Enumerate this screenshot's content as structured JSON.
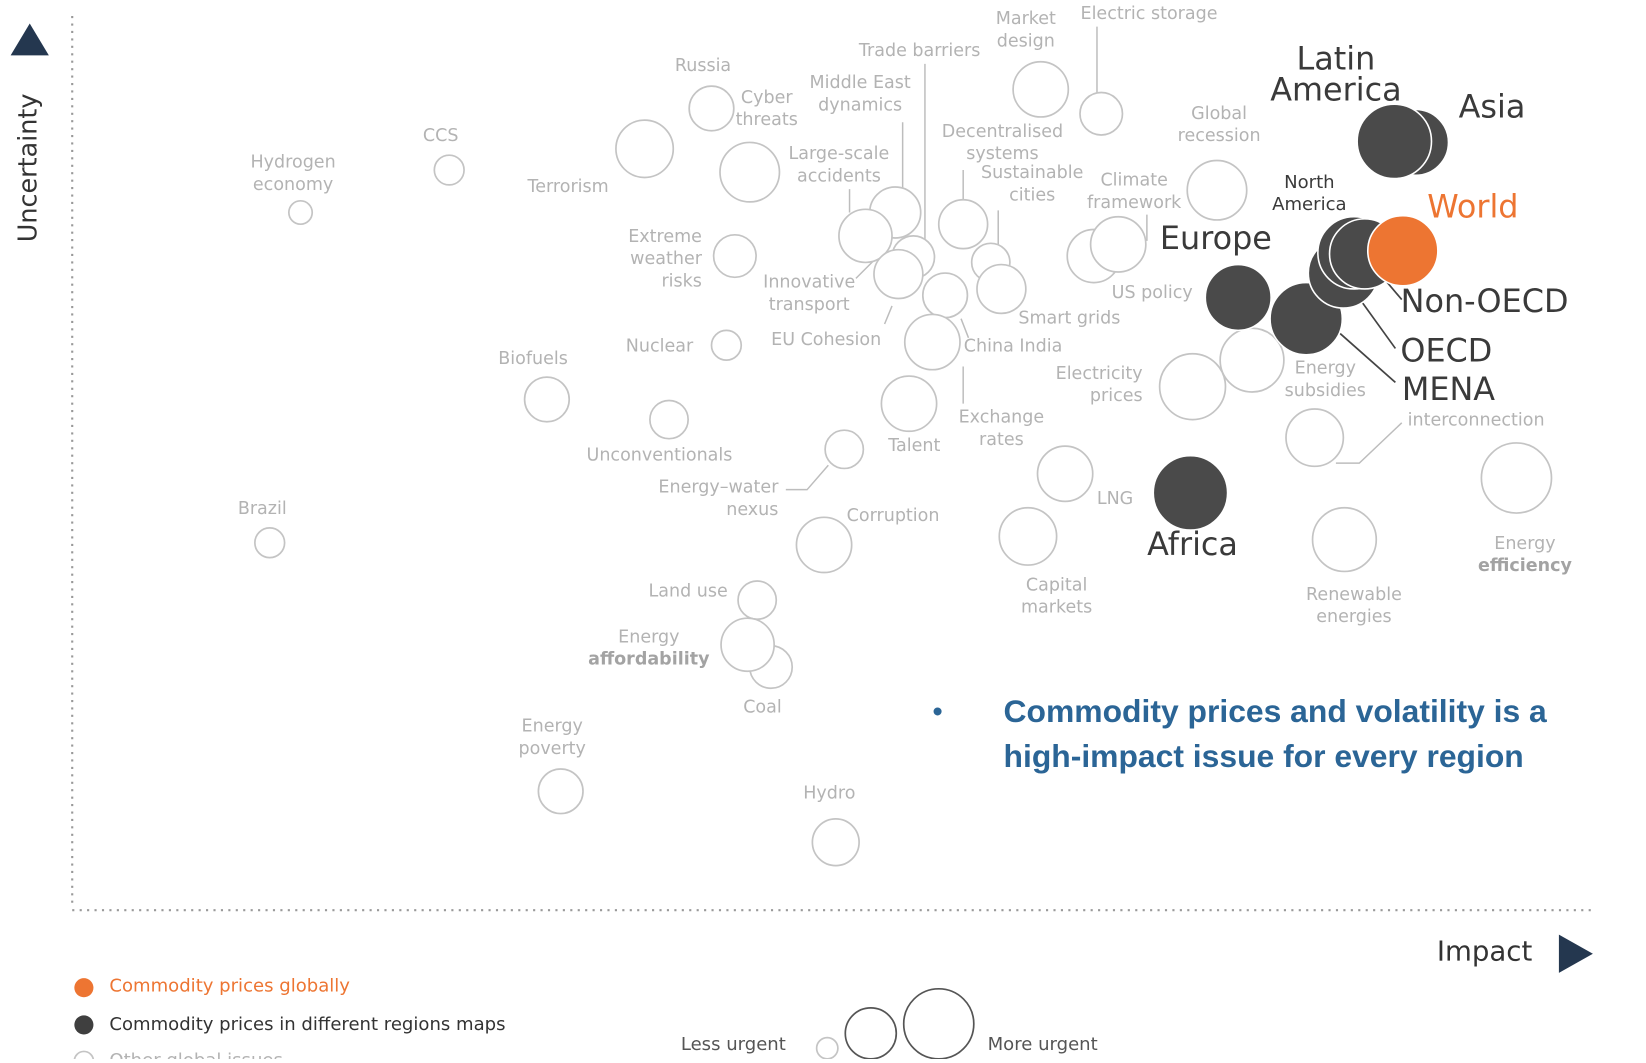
{
  "axes": {
    "y_label": "Uncertainty",
    "x_label": "Impact"
  },
  "nodes": [
    {
      "lines": [
        "Hydrogen",
        "economy"
      ]
    },
    {
      "lines": [
        "CCS"
      ]
    },
    {
      "lines": [
        "Russia"
      ]
    },
    {
      "lines": [
        "Cyber",
        "threats"
      ]
    },
    {
      "lines": [
        "Terrorism"
      ]
    },
    {
      "lines": [
        "Large-scale",
        "accidents"
      ]
    },
    {
      "lines": [
        "Middle East",
        "dynamics"
      ]
    },
    {
      "lines": [
        "Trade barriers"
      ]
    },
    {
      "lines": [
        "Market",
        "design"
      ]
    },
    {
      "lines": [
        "Electric storage"
      ]
    },
    {
      "lines": [
        "Decentralised",
        "systems"
      ]
    },
    {
      "lines": [
        "Sustainable",
        "cities"
      ]
    },
    {
      "lines": [
        "Smart grids"
      ]
    },
    {
      "lines": [
        "Global",
        "recession"
      ]
    },
    {
      "lines": [
        "Climate",
        "framework"
      ]
    },
    {
      "lines": [
        "US policy"
      ]
    },
    {
      "lines": [
        "Extreme",
        "weather",
        "risks"
      ]
    },
    {
      "lines": [
        "Innovative",
        "transport"
      ]
    },
    {
      "lines": [
        "EU Cohesion"
      ]
    },
    {
      "lines": [
        "China India"
      ]
    },
    {
      "lines": [
        "Nuclear"
      ]
    },
    {
      "lines": [
        "Biofuels"
      ]
    },
    {
      "lines": [
        "Unconventionals"
      ]
    },
    {
      "lines": [
        "Talent"
      ]
    },
    {
      "lines": [
        "Exchange",
        "rates"
      ]
    },
    {
      "lines": [
        "Electricity",
        "prices"
      ]
    },
    {
      "lines": [
        "Energy",
        "subsidies"
      ]
    },
    {
      "lines": [
        "interconnection"
      ]
    },
    {
      "lines": [
        "Energy–water",
        "nexus"
      ]
    },
    {
      "lines": [
        "LNG"
      ]
    },
    {
      "lines": [
        "Corruption"
      ]
    },
    {
      "lines": [
        "Capital",
        "markets"
      ]
    },
    {
      "lines": [
        "Renewable",
        "energies"
      ]
    },
    {
      "lines": [
        "Energy",
        "efficiency"
      ]
    },
    {
      "lines": [
        "Brazil"
      ]
    },
    {
      "lines": [
        "Land use"
      ]
    },
    {
      "lines": [
        "Energy",
        "affordability"
      ]
    },
    {
      "lines": [
        "Coal"
      ]
    },
    {
      "lines": [
        "Energy",
        "poverty"
      ]
    },
    {
      "lines": [
        "Hydro"
      ]
    },
    {
      "lines": [
        "Latin",
        "America"
      ]
    },
    {
      "lines": [
        "Asia"
      ]
    },
    {
      "lines": [
        "North",
        "America"
      ]
    },
    {
      "lines": [
        "Europe"
      ]
    },
    {
      "lines": [
        "World"
      ]
    },
    {
      "lines": [
        "Non-OECD"
      ]
    },
    {
      "lines": [
        "OECD"
      ]
    },
    {
      "lines": [
        "MENA"
      ]
    },
    {
      "lines": [
        "Africa"
      ]
    }
  ],
  "callout": [
    "Commodity prices and volatility is a",
    "high-impact issue for every region"
  ],
  "legend": [
    "Commodity prices globally",
    "Commodity prices in different regions maps",
    "Other global issues"
  ],
  "size_legend": [
    "Less urgent",
    "More urgent"
  ]
}
